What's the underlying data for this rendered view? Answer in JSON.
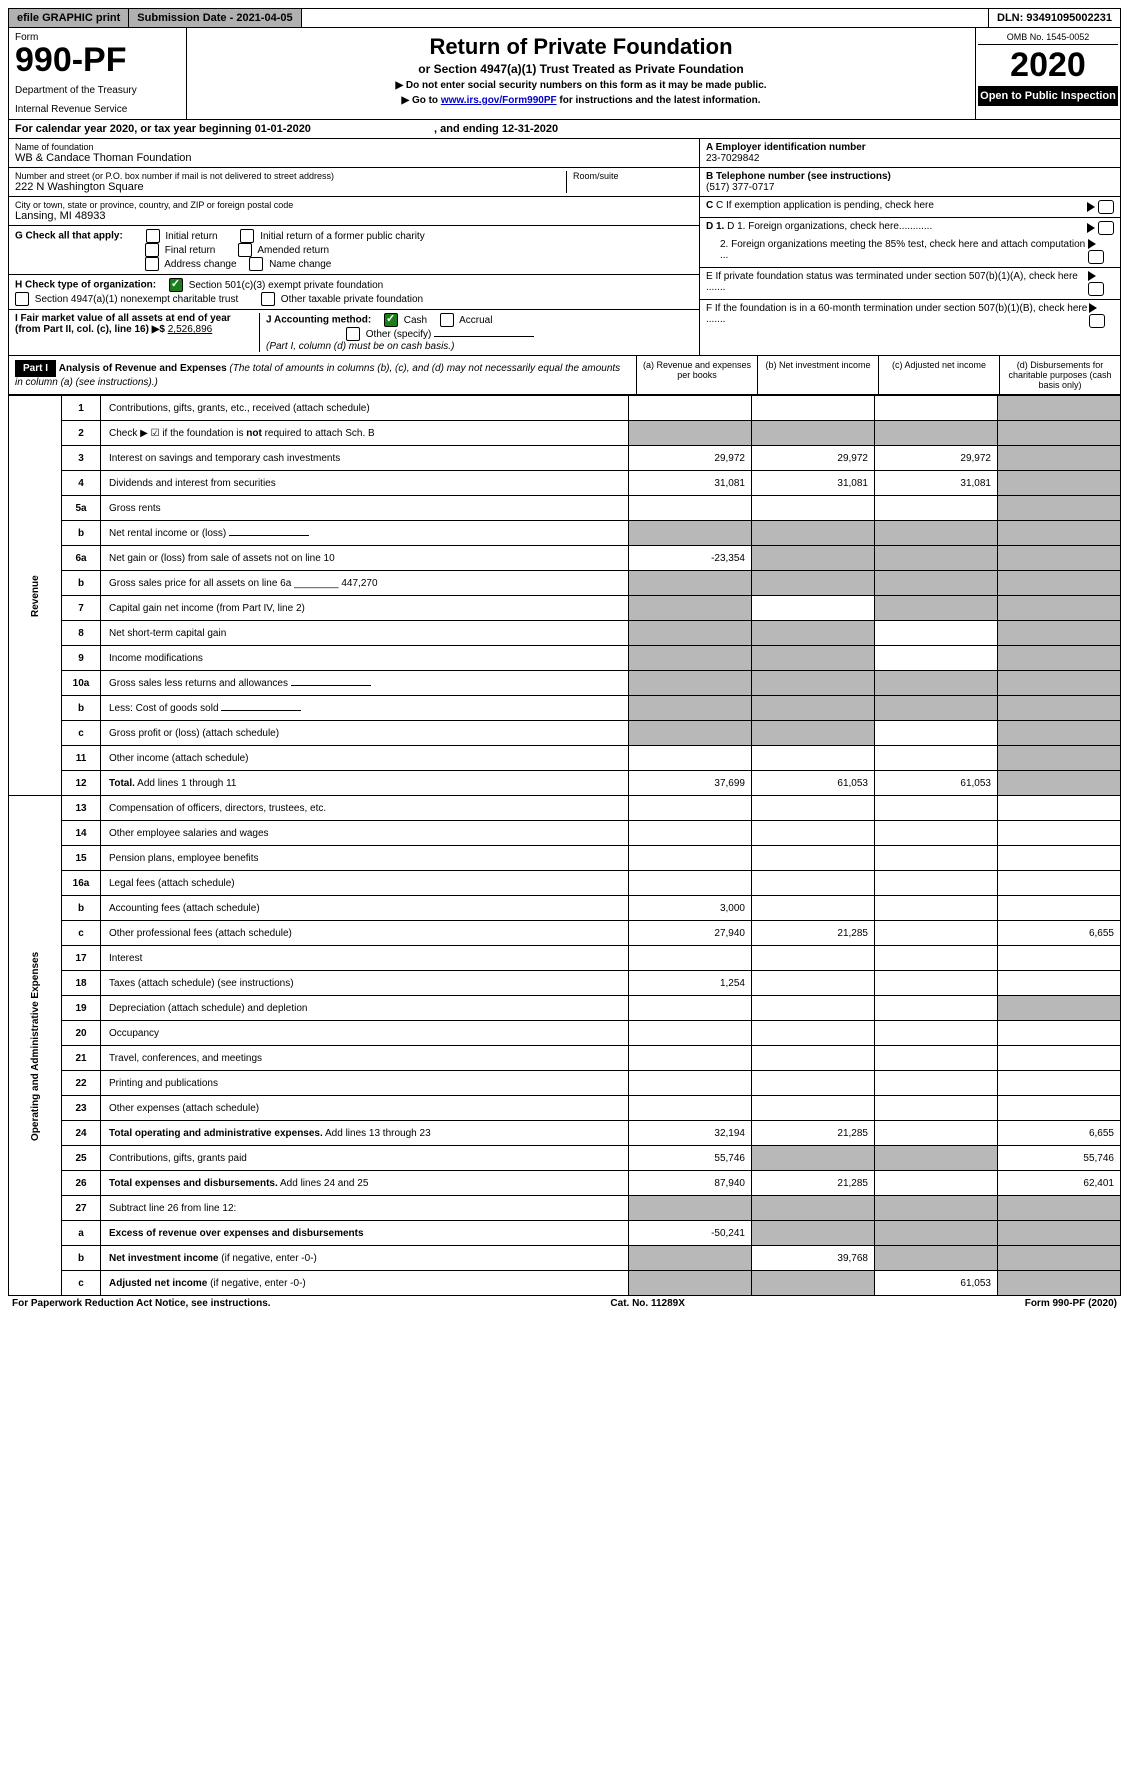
{
  "topbar": {
    "efile": "efile GRAPHIC print",
    "subdate_label": "Submission Date - ",
    "subdate": "2021-04-05",
    "dln_label": "DLN: ",
    "dln": "93491095002231"
  },
  "header": {
    "form_label": "Form",
    "form_num": "990-PF",
    "dept1": "Department of the Treasury",
    "dept2": "Internal Revenue Service",
    "title": "Return of Private Foundation",
    "subtitle": "or Section 4947(a)(1) Trust Treated as Private Foundation",
    "note1": "▶ Do not enter social security numbers on this form as it may be made public.",
    "note2_pre": "▶ Go to ",
    "note2_link": "www.irs.gov/Form990PF",
    "note2_post": " for instructions and the latest information.",
    "omb": "OMB No. 1545-0052",
    "year": "2020",
    "open": "Open to Public Inspection"
  },
  "calyear": {
    "pre": "For calendar year 2020, or tax year beginning ",
    "begin": "01-01-2020",
    "mid": " , and ending ",
    "end": "12-31-2020"
  },
  "entity": {
    "name_label": "Name of foundation",
    "name": "WB & Candace Thoman Foundation",
    "addr_label": "Number and street (or P.O. box number if mail is not delivered to street address)",
    "addr": "222 N Washington Square",
    "room_label": "Room/suite",
    "city_label": "City or town, state or province, country, and ZIP or foreign postal code",
    "city": "Lansing, MI  48933"
  },
  "boxA": {
    "label": "A Employer identification number",
    "val": "23-7029842"
  },
  "boxB": {
    "label": "B Telephone number (see instructions)",
    "val": "(517) 377-0717"
  },
  "boxC": "C If exemption application is pending, check here",
  "boxD1": "D 1. Foreign organizations, check here............",
  "boxD2": "2. Foreign organizations meeting the 85% test, check here and attach computation ...",
  "boxE": "E  If private foundation status was terminated under section 507(b)(1)(A), check here .......",
  "boxF": "F  If the foundation is in a 60-month termination under section 507(b)(1)(B), check here .......",
  "G": {
    "label": "G Check all that apply:",
    "opts": [
      "Initial return",
      "Initial return of a former public charity",
      "Final return",
      "Amended return",
      "Address change",
      "Name change"
    ]
  },
  "H": {
    "label": "H Check type of organization:",
    "o1": "Section 501(c)(3) exempt private foundation",
    "o2": "Section 4947(a)(1) nonexempt charitable trust",
    "o3": "Other taxable private foundation"
  },
  "I": {
    "label": "I Fair market value of all assets at end of year (from Part II, col. (c), line 16) ▶$ ",
    "val": "2,526,896"
  },
  "J": {
    "label": "J Accounting method:",
    "o1": "Cash",
    "o2": "Accrual",
    "o3": "Other (specify)",
    "note": "(Part I, column (d) must be on cash basis.)"
  },
  "part1": {
    "label": "Part I",
    "title": "Analysis of Revenue and Expenses",
    "desc": "(The total of amounts in columns (b), (c), and (d) may not necessarily equal the amounts in column (a) (see instructions).)",
    "colA": "(a)   Revenue and expenses per books",
    "colB": "(b)  Net investment income",
    "colC": "(c)  Adjusted net income",
    "colD": "(d)  Disbursements for charitable purposes (cash basis only)"
  },
  "sections": {
    "revenue": "Revenue",
    "expenses": "Operating and Administrative Expenses"
  },
  "rows": [
    {
      "n": "1",
      "d": "Contributions, gifts, grants, etc., received (attach schedule)",
      "a": "",
      "b": "",
      "c": "",
      "dS": true
    },
    {
      "n": "2",
      "d": "Check ▶ ☑ if the foundation is <b>not</b> required to attach Sch. B",
      "a": "",
      "b": "",
      "c": "",
      "bS": true,
      "cS": true,
      "dS": true,
      "aS": true
    },
    {
      "n": "3",
      "d": "Interest on savings and temporary cash investments",
      "a": "29,972",
      "b": "29,972",
      "c": "29,972",
      "dS": true
    },
    {
      "n": "4",
      "d": "Dividends and interest from securities",
      "a": "31,081",
      "b": "31,081",
      "c": "31,081",
      "dS": true,
      "dots": true
    },
    {
      "n": "5a",
      "d": "Gross rents",
      "a": "",
      "b": "",
      "c": "",
      "dS": true,
      "dots": true
    },
    {
      "n": "b",
      "d": "Net rental income or (loss)",
      "a": "",
      "b": "",
      "c": "",
      "aS": true,
      "bS": true,
      "cS": true,
      "dS": true,
      "uline": true
    },
    {
      "n": "6a",
      "d": "Net gain or (loss) from sale of assets not on line 10",
      "a": "-23,354",
      "bS": true,
      "cS": true,
      "dS": true
    },
    {
      "n": "b",
      "d": "Gross sales price for all assets on line 6a ________ 447,270",
      "aS": true,
      "bS": true,
      "cS": true,
      "dS": true
    },
    {
      "n": "7",
      "d": "Capital gain net income (from Part IV, line 2)",
      "aS": true,
      "b": "",
      "cS": true,
      "dS": true,
      "dots": true
    },
    {
      "n": "8",
      "d": "Net short-term capital gain",
      "aS": true,
      "bS": true,
      "c": "",
      "dS": true,
      "dots": true
    },
    {
      "n": "9",
      "d": "Income modifications",
      "aS": true,
      "bS": true,
      "c": "",
      "dS": true,
      "dots": true
    },
    {
      "n": "10a",
      "d": "Gross sales less returns and allowances",
      "aS": true,
      "bS": true,
      "cS": true,
      "dS": true,
      "uline": true
    },
    {
      "n": "b",
      "d": "Less: Cost of goods sold",
      "aS": true,
      "bS": true,
      "cS": true,
      "dS": true,
      "dots": true,
      "uline": true
    },
    {
      "n": "c",
      "d": "Gross profit or (loss) (attach schedule)",
      "aS": true,
      "bS": true,
      "c": "",
      "dS": true,
      "dots": true
    },
    {
      "n": "11",
      "d": "Other income (attach schedule)",
      "a": "",
      "b": "",
      "c": "",
      "dS": true,
      "dots": true
    },
    {
      "n": "12",
      "d": "<b>Total.</b> Add lines 1 through 11",
      "a": "37,699",
      "b": "61,053",
      "c": "61,053",
      "dS": true,
      "dots": true
    }
  ],
  "exprows": [
    {
      "n": "13",
      "d": "Compensation of officers, directors, trustees, etc."
    },
    {
      "n": "14",
      "d": "Other employee salaries and wages",
      "dots": true
    },
    {
      "n": "15",
      "d": "Pension plans, employee benefits",
      "dots": true
    },
    {
      "n": "16a",
      "d": "Legal fees (attach schedule)",
      "dots": true
    },
    {
      "n": "b",
      "d": "Accounting fees (attach schedule)",
      "a": "3,000",
      "dots": true
    },
    {
      "n": "c",
      "d": "Other professional fees (attach schedule)",
      "a": "27,940",
      "b": "21,285",
      "dcol": "6,655",
      "dots": true
    },
    {
      "n": "17",
      "d": "Interest",
      "dots": true
    },
    {
      "n": "18",
      "d": "Taxes (attach schedule) (see instructions)",
      "a": "1,254",
      "dots": true
    },
    {
      "n": "19",
      "d": "Depreciation (attach schedule) and depletion",
      "dS": true,
      "dots": true
    },
    {
      "n": "20",
      "d": "Occupancy",
      "dots": true
    },
    {
      "n": "21",
      "d": "Travel, conferences, and meetings",
      "dots": true
    },
    {
      "n": "22",
      "d": "Printing and publications",
      "dots": true
    },
    {
      "n": "23",
      "d": "Other expenses (attach schedule)",
      "dots": true
    },
    {
      "n": "24",
      "d": "<b>Total operating and administrative expenses.</b> Add lines 13 through 23",
      "a": "32,194",
      "b": "21,285",
      "dcol": "6,655",
      "dots": true
    },
    {
      "n": "25",
      "d": "Contributions, gifts, grants paid",
      "a": "55,746",
      "bS": true,
      "cS": true,
      "dcol": "55,746",
      "dots": true
    },
    {
      "n": "26",
      "d": "<b>Total expenses and disbursements.</b> Add lines 24 and 25",
      "a": "87,940",
      "b": "21,285",
      "dcol": "62,401"
    },
    {
      "n": "27",
      "d": "Subtract line 26 from line 12:",
      "aS": true,
      "bS": true,
      "cS": true,
      "dS": true
    },
    {
      "n": "a",
      "d": "<b>Excess of revenue over expenses and disbursements</b>",
      "a": "-50,241",
      "bS": true,
      "cS": true,
      "dS": true
    },
    {
      "n": "b",
      "d": "<b>Net investment income</b> (if negative, enter -0-)",
      "aS": true,
      "b": "39,768",
      "cS": true,
      "dS": true
    },
    {
      "n": "c",
      "d": "<b>Adjusted net income</b> (if negative, enter -0-)",
      "aS": true,
      "bS": true,
      "c": "61,053",
      "dS": true,
      "dots": true
    }
  ],
  "footer": {
    "left": "For Paperwork Reduction Act Notice, see instructions.",
    "mid": "Cat. No. 11289X",
    "right": "Form 990-PF (2020)"
  }
}
